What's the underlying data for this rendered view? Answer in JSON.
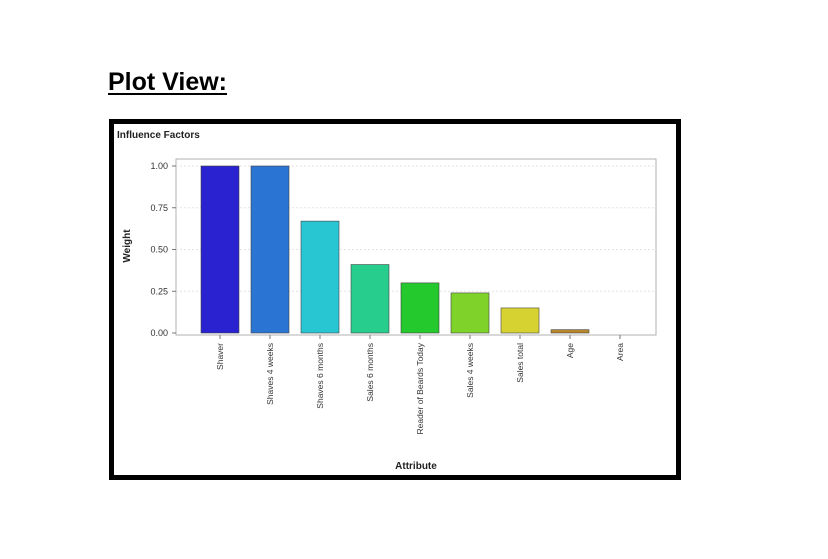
{
  "heading": "Plot View:",
  "chart_data": {
    "type": "bar",
    "title": "Influence Factors",
    "xlabel": "Attribute",
    "ylabel": "Weight",
    "ylim": [
      0,
      1.0
    ],
    "yticks": [
      "0.00",
      "0.25",
      "0.50",
      "0.75",
      "1.00"
    ],
    "grid": true,
    "categories": [
      "Shaver",
      "Shaves 4 weeks",
      "Shaves 6 months",
      "Sales 6 months",
      "Reader of Beards Today",
      "Sales 4 weeks",
      "Sales total",
      "Age",
      "Area"
    ],
    "values": [
      1.0,
      1.0,
      0.67,
      0.41,
      0.3,
      0.24,
      0.15,
      0.02,
      0.0
    ],
    "colors": [
      "#2a22d0",
      "#2a74d4",
      "#27c6d2",
      "#27cd8c",
      "#24c92e",
      "#7ed22a",
      "#d6d232",
      "#b8862a",
      "#b8862a"
    ]
  }
}
